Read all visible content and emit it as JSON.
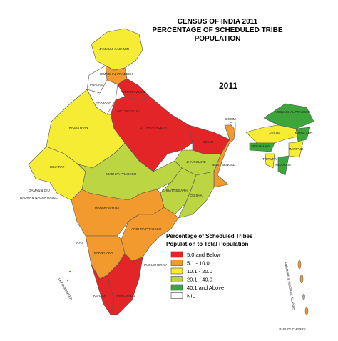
{
  "title_lines": [
    "CENSUS OF INDIA 2011",
    "PERCENTAGE OF SCHEDULED TRIBE",
    "POPULATION"
  ],
  "year": "2011",
  "legend": {
    "title_lines": [
      "Percentage of Scheduled Tribes",
      "Population  to Total Population"
    ],
    "items": [
      {
        "label": "5.0 and Below",
        "color": "#e42528"
      },
      {
        "label": "5.1 - 10.0",
        "color": "#f39a2e"
      },
      {
        "label": "10.1 - 20.0",
        "color": "#f5ec33"
      },
      {
        "label": "20.1 - 40.0",
        "color": "#bcd542"
      },
      {
        "label": "40.1 and Above",
        "color": "#3da63a"
      },
      {
        "label": "NIL",
        "color": "#ffffff"
      }
    ]
  },
  "state_labels": [
    "JAMMU & KASHMIR",
    "HIMACHAL PRADESH",
    "PUNJAB",
    "UTTARAKHAND",
    "HARYANA",
    "NCT OF DELHI",
    "RAJASTHAN",
    "UTTAR PRADESH",
    "BIHAR",
    "SIKKIM",
    "ARUNACHAL PRADESH",
    "ASSAM",
    "NAGALAND",
    "MEGHALAYA",
    "MANIPUR",
    "TRIPURA",
    "MIZORAM",
    "GUJARAT",
    "MADHYA PRADESH",
    "JHARKHAND",
    "WEST BENGAL",
    "CHHATTISGARH",
    "ODISHA",
    "DAMAN & DIU",
    "DADRA & NAGAR HAVELI",
    "MAHARASHTRA",
    "ANDHRA PRADESH",
    "GOA",
    "KARNATAKA",
    "KERALA",
    "TAMIL NADU",
    "PUDUCHERRY",
    "LAKSHADWEEP",
    "ANDAMAN & NICOBAR ISLANDS"
  ],
  "footnote": "P=PUDUCHERRY"
}
